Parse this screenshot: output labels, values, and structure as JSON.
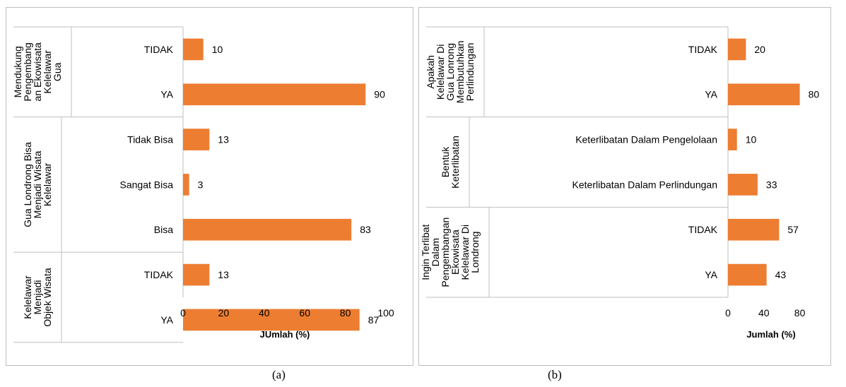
{
  "chart_data": [
    {
      "type": "bar",
      "orientation": "horizontal",
      "xlabel": "JUmlah (%)",
      "xlim": [
        0,
        100
      ],
      "xticks": [
        0,
        20,
        40,
        60,
        80,
        100
      ],
      "bar_color": "#ED7D31",
      "groups": [
        {
          "label": "Mendukung Pengembang an Ekowisata Kelelawar Gua",
          "lines": [
            "Mendukung",
            "Pengembang",
            "an Ekowisata",
            "Kelelawar",
            "Gua"
          ],
          "categories": [
            "TIDAK",
            "YA"
          ],
          "values": [
            10,
            90
          ]
        },
        {
          "label": "Gua Londrong Bisa Menjadi Wisata Kelelawar",
          "lines": [
            "Gua Londrong Bisa",
            "Menjadi Wisata",
            "Kelelawar"
          ],
          "categories": [
            "Tidak Bisa",
            "Sangat Bisa",
            "Bisa"
          ],
          "values": [
            13,
            3,
            83
          ]
        },
        {
          "label": "Kelelawar Menjadi Objek Wisata",
          "lines": [
            "Kelelawar",
            "Menjadi",
            "Objek Wisata"
          ],
          "categories": [
            "TIDAK",
            "YA"
          ],
          "values": [
            13,
            87
          ]
        }
      ]
    },
    {
      "type": "bar",
      "orientation": "horizontal",
      "xlabel": "Jumlah (%)",
      "xlim": [
        0,
        100
      ],
      "xticks": [
        0,
        40,
        80
      ],
      "bar_color": "#ED7D31",
      "groups": [
        {
          "label": "Apakah Kelelawar Di Gua Lonrong Membutuhkan Perlindungan",
          "lines": [
            "Apakah",
            "Kelelawar Di",
            "Gua Lonrong",
            "Membutuhkan",
            "Perlindungan"
          ],
          "categories": [
            "TIDAK",
            "YA"
          ],
          "values": [
            20,
            80
          ]
        },
        {
          "label": "Bentuk Keterlibatan",
          "lines": [
            "Bentuk",
            "Keterlibatan"
          ],
          "categories": [
            "Keterlibatan Dalam Pengelolaan",
            "Keterlibatan Dalam Perlindungan"
          ],
          "values": [
            10,
            33
          ]
        },
        {
          "label": "Ingin Terlibat Dalam Pengembangan Ekowisata Kelelawar Di Londrong",
          "lines": [
            "Ingin Terlibat",
            "Dalam",
            "Pengembangan",
            "Ekowisata",
            "Kelelawar Di",
            "Londrong"
          ],
          "categories": [
            "TIDAK",
            "YA"
          ],
          "values": [
            57,
            43
          ]
        }
      ]
    }
  ],
  "captions": {
    "a": "(a)",
    "b": "(b)"
  }
}
